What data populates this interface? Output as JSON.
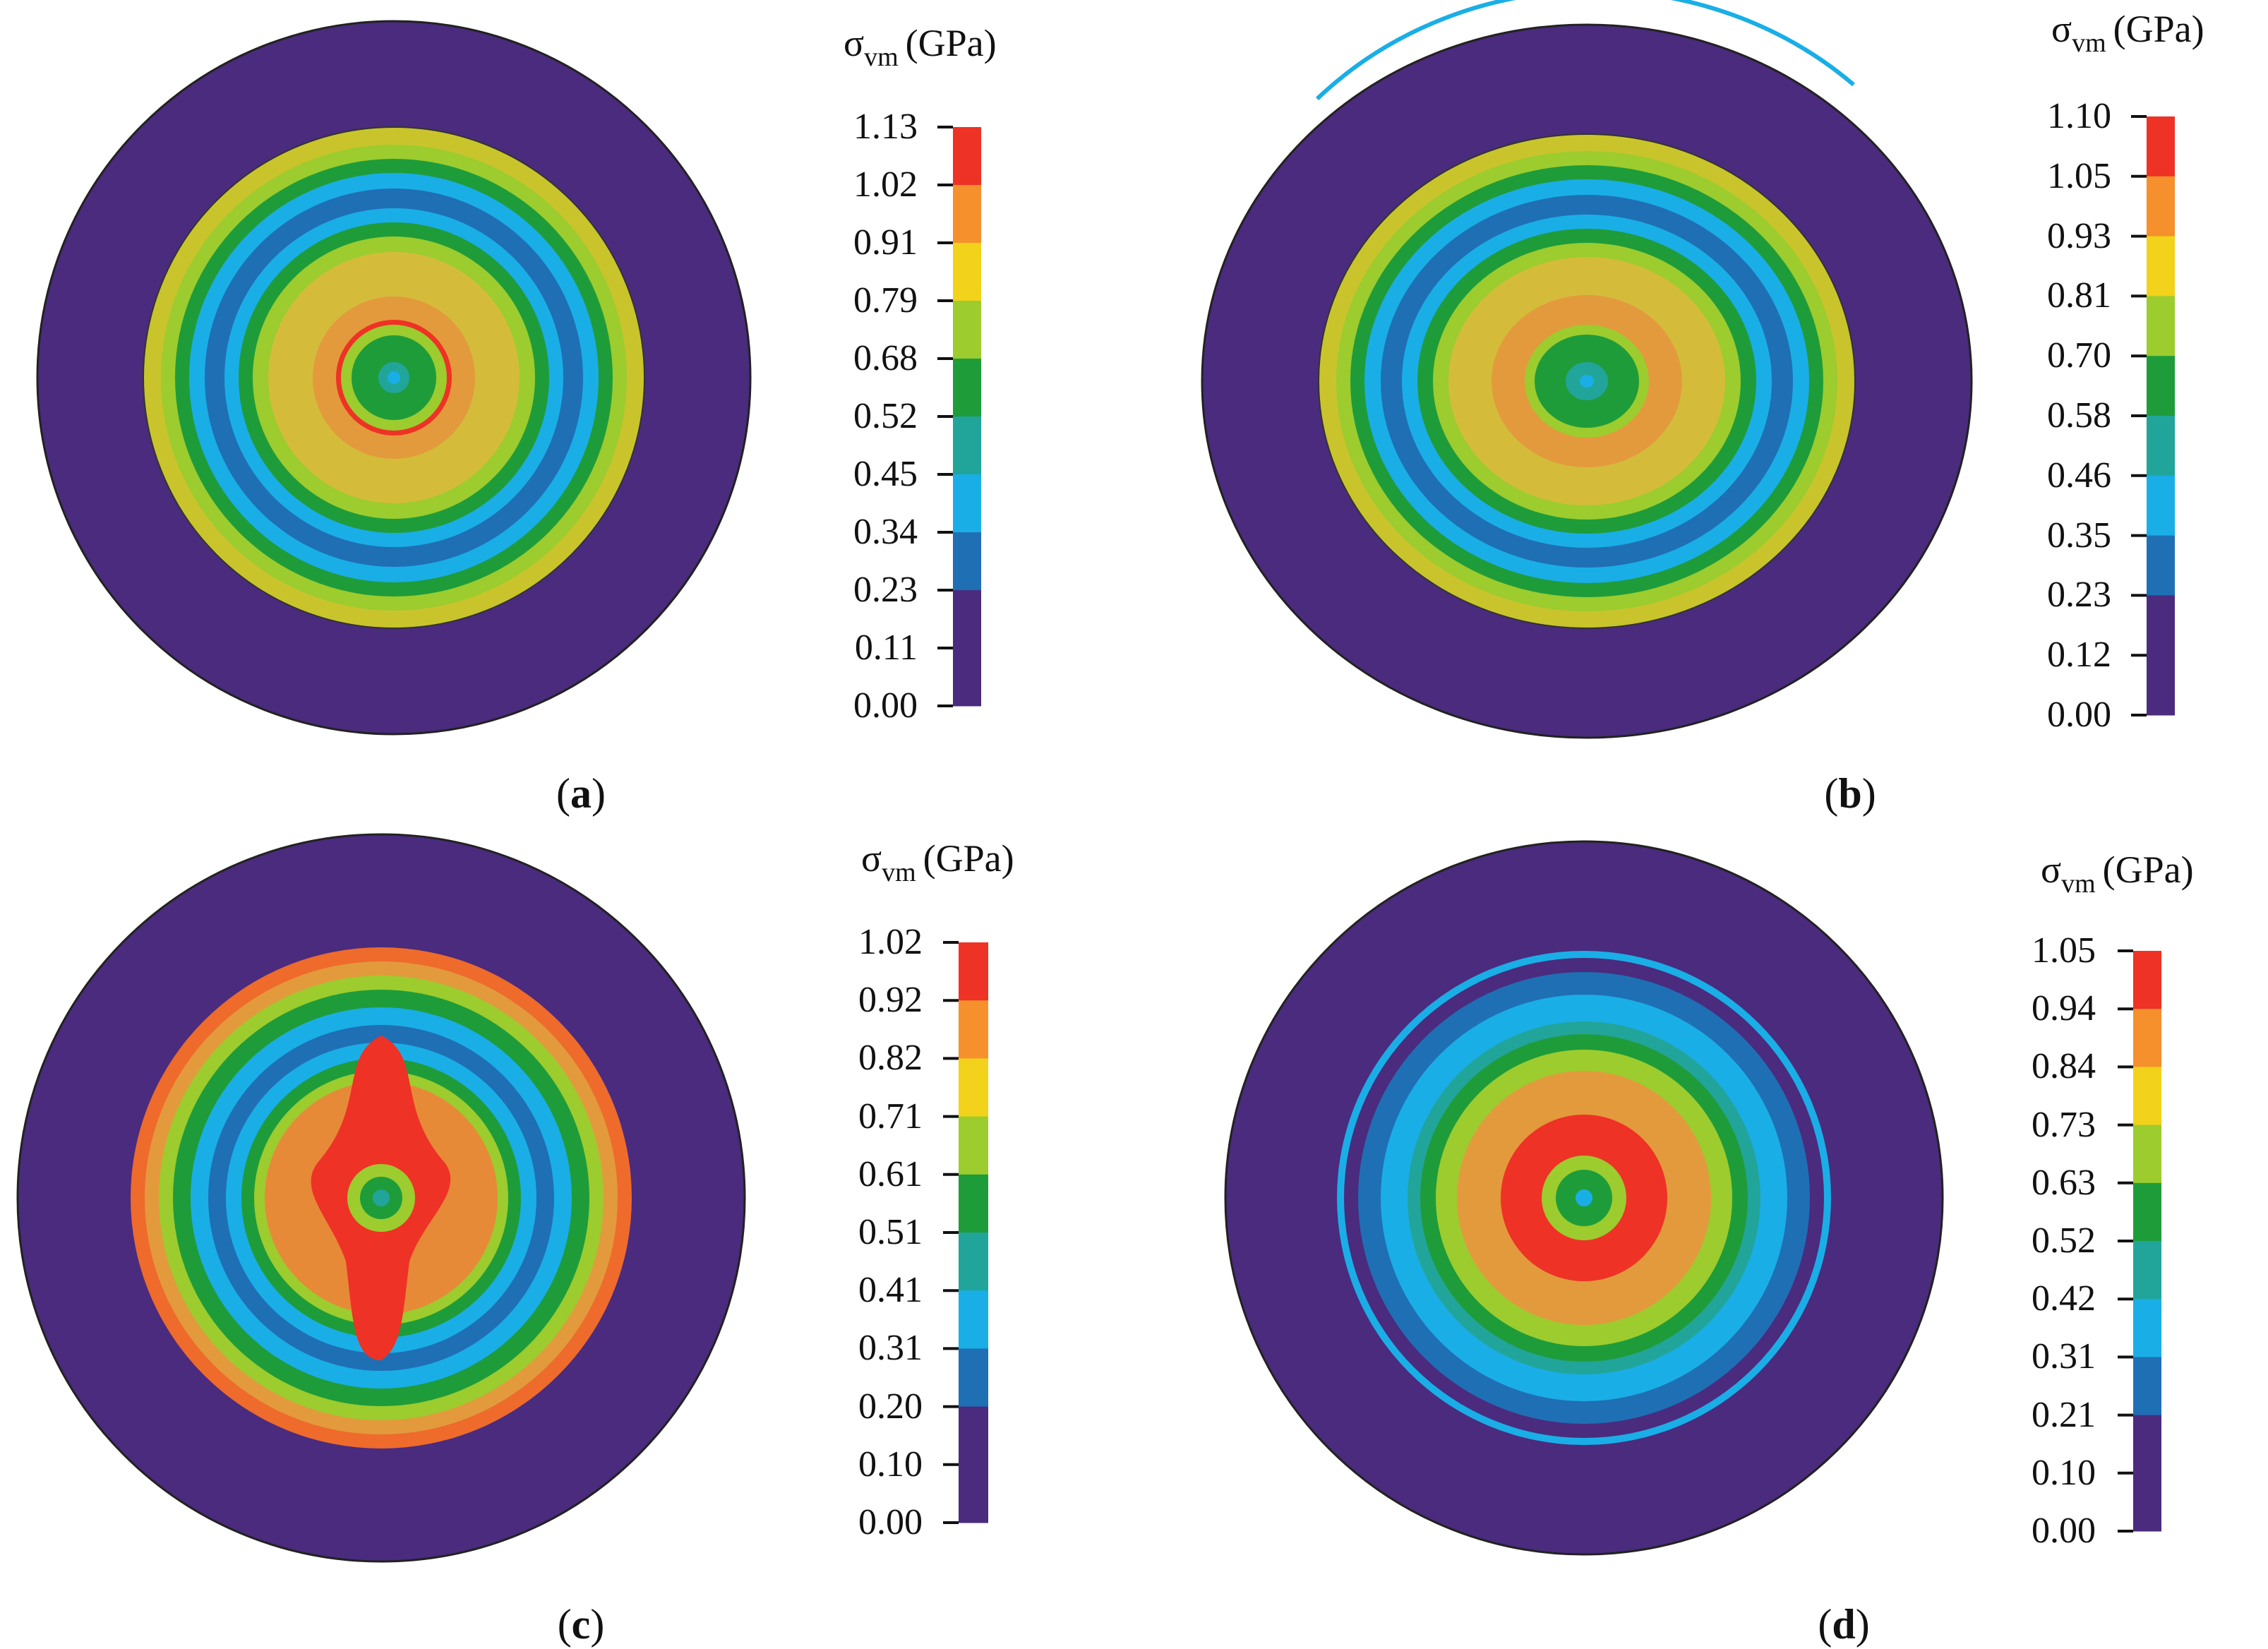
{
  "unit_label": {
    "symbol": "σ",
    "subscript": "vm",
    "unit": "(GPa)"
  },
  "band_colors": [
    "#4a2b7e",
    "#1f6fb5",
    "#1aaee6",
    "#21a59a",
    "#1f9c3a",
    "#9ccc2e",
    "#f2d21a",
    "#f5902c",
    "#ee3226"
  ],
  "panels": [
    {
      "id": "a",
      "caption": "a",
      "ticks": [
        "1.13",
        "1.02",
        "0.91",
        "0.79",
        "0.68",
        "0.52",
        "0.45",
        "0.34",
        "0.23",
        "0.11",
        "0.00"
      ]
    },
    {
      "id": "b",
      "caption": "b",
      "ticks": [
        "1.10",
        "1.05",
        "0.93",
        "0.81",
        "0.70",
        "0.58",
        "0.46",
        "0.35",
        "0.23",
        "0.12",
        "0.00"
      ]
    },
    {
      "id": "c",
      "caption": "c",
      "ticks": [
        "1.02",
        "0.92",
        "0.82",
        "0.71",
        "0.61",
        "0.51",
        "0.41",
        "0.31",
        "0.20",
        "0.10",
        "0.00"
      ]
    },
    {
      "id": "d",
      "caption": "d",
      "ticks": [
        "1.05",
        "0.94",
        "0.84",
        "0.73",
        "0.63",
        "0.52",
        "0.42",
        "0.31",
        "0.21",
        "0.10",
        "0.00"
      ]
    }
  ]
}
